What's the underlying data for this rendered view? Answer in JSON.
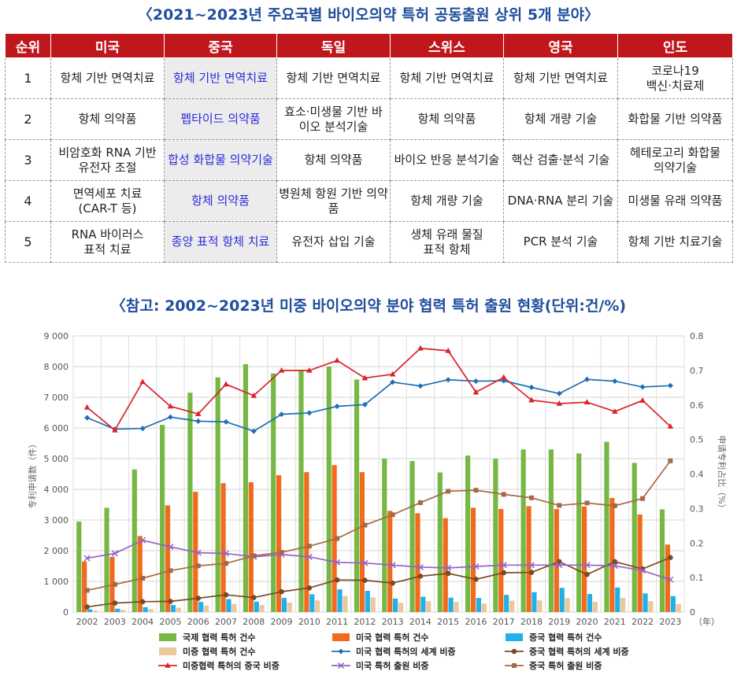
{
  "titles": {
    "top": "〈2021~2023년 주요국별 바이오의약 특허 공동출원 상위 5개 분야〉",
    "chart": "〈참고: 2002~2023년 미중 바이오의약 분야 협력 특허 출원 현황(단위:건/%)"
  },
  "table": {
    "headers": [
      "순위",
      "미국",
      "중국",
      "독일",
      "스위스",
      "영국",
      "인도"
    ],
    "rows": [
      [
        "1",
        "항체 기반 면역치료",
        "항체 기반 면역치료",
        "항체 기반 면역치료",
        "항체 기반 면역치료",
        "항체 기반 면역치료",
        "코로나19\n백신·치료제"
      ],
      [
        "2",
        "항체 의약품",
        "펩타이드 의약품",
        "효소·미생물 기반 바\n이오 분석기술",
        "항체 의약품",
        "항체 개량 기술",
        "화합물 기반 의약품"
      ],
      [
        "3",
        "비암호화 RNA 기반\n유전자 조절",
        "합성 화합물 의약기술",
        "항체 의약품",
        "바이오 반응 분석기술",
        "핵산 검출·분석 기술",
        "헤테로고리 화합물\n의약기술"
      ],
      [
        "4",
        "면역세포 치료\n(CAR-T 등)",
        "항체 의약품",
        "병원체 항원 기반 의약품",
        "항체 개량 기술",
        "DNA·RNA 분리 기술",
        "미생물 유래 의약품"
      ],
      [
        "5",
        "RNA 바이러스\n표적 치료",
        "종양 표적 항체 치료",
        "유전자 삽입 기술",
        "생체 유래 물질\n표적 항체",
        "PCR 분석 기술",
        "항체 기반 치료기술"
      ]
    ]
  },
  "chart_data": {
    "type": "bar",
    "categories": [
      "2002",
      "2003",
      "2004",
      "2005",
      "2006",
      "2007",
      "2008",
      "2009",
      "2010",
      "2011",
      "2012",
      "2013",
      "2014",
      "2015",
      "2016",
      "2017",
      "2018",
      "2019",
      "2020",
      "2021",
      "2022",
      "2023"
    ],
    "ylim_left": [
      0,
      9000
    ],
    "ylim_right": [
      0,
      0.8
    ],
    "yticks_left": [
      "0",
      "1 000",
      "2 000",
      "3 000",
      "4 000",
      "5 000",
      "6 000",
      "7 000",
      "8 000",
      "9 000"
    ],
    "yticks_right": [
      "0",
      "0.1",
      "0.2",
      "0.3",
      "0.4",
      "0.5",
      "0.6",
      "0.7",
      "0.8"
    ],
    "ylabel_left": "专利申请数（件）",
    "ylabel_right": "申请专利占比（%）",
    "xunit": "（年）",
    "colors": {
      "intl": "#76b843",
      "us": "#f26b1d",
      "cn": "#22b0e9",
      "uscn": "#ecc79a",
      "us_share": "#1f6fb4",
      "cn_share": "#7b4a25",
      "cn_share_in_uscn": "#d9242c",
      "us_filing": "#9563c2",
      "cn_filing": "#a56a45"
    },
    "bar_series": [
      {
        "key": "intl",
        "name": "국제 협력 특허 건수",
        "values": [
          2950,
          3400,
          4650,
          6100,
          7150,
          7650,
          8080,
          7780,
          7900,
          8000,
          7580,
          5000,
          4920,
          4550,
          5100,
          5000,
          5300,
          5300,
          5170,
          5550,
          4860,
          3350
        ]
      },
      {
        "key": "us",
        "name": "미국 협력 특허 건수",
        "values": [
          1650,
          1800,
          2480,
          3480,
          3920,
          4200,
          4230,
          4460,
          4560,
          4790,
          4560,
          3300,
          3220,
          3060,
          3400,
          3360,
          3450,
          3360,
          3440,
          3720,
          3180,
          2200
        ]
      },
      {
        "key": "cn",
        "name": "중국 협력 특허 건수",
        "values": [
          90,
          110,
          160,
          230,
          330,
          420,
          340,
          460,
          580,
          740,
          690,
          440,
          500,
          470,
          460,
          560,
          650,
          790,
          590,
          800,
          610,
          520
        ]
      },
      {
        "key": "uscn",
        "name": "미중 협력 특허 건수",
        "values": [
          50,
          70,
          100,
          140,
          210,
          260,
          230,
          310,
          380,
          520,
          480,
          300,
          360,
          330,
          280,
          370,
          380,
          460,
          330,
          460,
          360,
          260
        ]
      }
    ],
    "line_series": [
      {
        "key": "us_share",
        "name": "미국 협력 특허의 세계 비중",
        "marker": "diamond",
        "values": [
          0.563,
          0.53,
          0.532,
          0.565,
          0.553,
          0.551,
          0.524,
          0.573,
          0.577,
          0.596,
          0.601,
          0.666,
          0.655,
          0.673,
          0.669,
          0.67,
          0.651,
          0.633,
          0.674,
          0.669,
          0.652,
          0.656
        ]
      },
      {
        "key": "cn_share",
        "name": "중국 협력 특허의 세계 비중",
        "marker": "circle",
        "values": [
          0.015,
          0.026,
          0.03,
          0.031,
          0.04,
          0.05,
          0.042,
          0.059,
          0.07,
          0.093,
          0.092,
          0.084,
          0.104,
          0.112,
          0.095,
          0.114,
          0.115,
          0.146,
          0.109,
          0.146,
          0.125,
          0.158
        ]
      },
      {
        "key": "cn_share_in_uscn",
        "name": "미중협력 특허의 중국 비중",
        "marker": "triangle",
        "values": [
          0.593,
          0.527,
          0.667,
          0.596,
          0.574,
          0.66,
          0.627,
          0.7,
          0.7,
          0.729,
          0.678,
          0.689,
          0.764,
          0.757,
          0.637,
          0.68,
          0.614,
          0.604,
          0.608,
          0.581,
          0.613,
          0.538
        ]
      },
      {
        "key": "us_filing",
        "name": "미국 특허 출원 비중",
        "marker": "x",
        "values": [
          0.156,
          0.17,
          0.208,
          0.189,
          0.172,
          0.17,
          0.16,
          0.167,
          0.16,
          0.144,
          0.142,
          0.136,
          0.13,
          0.128,
          0.132,
          0.136,
          0.136,
          0.136,
          0.136,
          0.134,
          0.12,
          0.094
        ]
      },
      {
        "key": "cn_filing",
        "name": "중국 특허 출원 비중",
        "marker": "square",
        "values": [
          0.063,
          0.08,
          0.098,
          0.12,
          0.134,
          0.141,
          0.163,
          0.173,
          0.191,
          0.213,
          0.252,
          0.282,
          0.317,
          0.35,
          0.353,
          0.341,
          0.331,
          0.309,
          0.316,
          0.308,
          0.329,
          0.438
        ]
      }
    ]
  },
  "legend_rows": [
    [
      "국제 협력 특허 건수",
      "미국 협력 특허 건수",
      "중국 협력 특허 건수"
    ],
    [
      "미중 협력 특허 건수",
      "미국 협력 특허의 세계 비중",
      "중국 협력 특허의 세계 비중"
    ],
    [
      "미중협력 특허의 중국 비중",
      "미국 특허 출원 비중",
      "중국 특허 출원 비중"
    ]
  ]
}
